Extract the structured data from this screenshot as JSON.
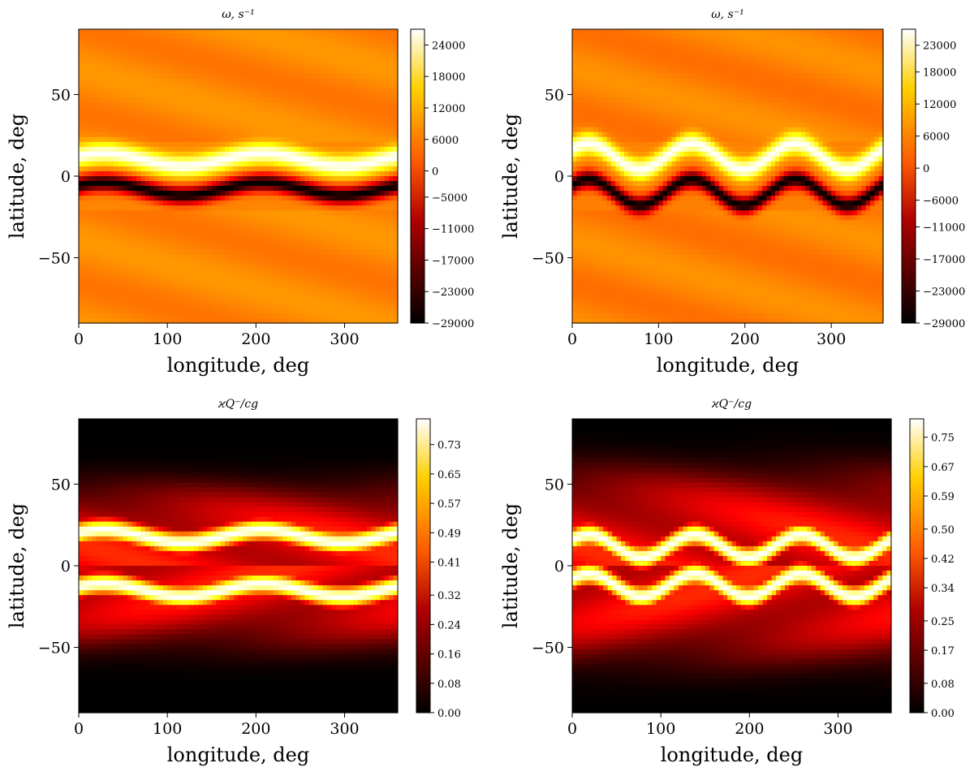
{
  "chart_data": [
    {
      "type": "heatmap",
      "title": "ω, s⁻¹",
      "xlabel": "longitude, deg",
      "ylabel": "latitude, deg",
      "xlim": [
        0,
        360
      ],
      "ylim": [
        -90,
        90
      ],
      "xticks": [
        "0",
        "100",
        "200",
        "300"
      ],
      "yticks": [
        "50",
        "0",
        "−50"
      ],
      "colormap": "hot",
      "field": "vorticity",
      "colorbar": {
        "min": -29000,
        "max": 27000,
        "ticks": [
          24000,
          18000,
          12000,
          6000,
          0,
          -5000,
          -11000,
          -17000,
          -23000,
          -29000
        ],
        "tick_labels": [
          "24000",
          "18000",
          "12000",
          "6000",
          "0",
          "−5000",
          "−11000",
          "−17000",
          "−23000",
          "−29000"
        ]
      },
      "bands": {
        "background_value": 3000,
        "positive_peak": {
          "value": 27000,
          "center_lat_deg": 10,
          "wave_amplitude_deg": 4,
          "wave_number": 2
        },
        "negative_trough": {
          "value": -29000,
          "center_lat_deg": -8,
          "wave_amplitude_deg": 4,
          "wave_number": 2
        }
      }
    },
    {
      "type": "heatmap",
      "title": "ω, s⁻¹",
      "xlabel": "longitude, deg",
      "ylabel": "latitude, deg",
      "xlim": [
        0,
        360
      ],
      "ylim": [
        -90,
        90
      ],
      "xticks": [
        "0",
        "100",
        "200",
        "300"
      ],
      "yticks": [
        "50",
        "0",
        "−50"
      ],
      "colormap": "hot",
      "field": "vorticity",
      "colorbar": {
        "min": -29000,
        "max": 26000,
        "ticks": [
          23000,
          18000,
          12000,
          6000,
          0,
          -6000,
          -11000,
          -17000,
          -23000,
          -29000
        ],
        "tick_labels": [
          "23000",
          "18000",
          "12000",
          "6000",
          "0",
          "−6000",
          "−11000",
          "−17000",
          "−23000",
          "−29000"
        ]
      },
      "bands": {
        "background_value": 2000,
        "positive_peak": {
          "value": 26000,
          "center_lat_deg": 12,
          "wave_amplitude_deg": 8,
          "wave_number": 3
        },
        "negative_trough": {
          "value": -29000,
          "center_lat_deg": -10,
          "wave_amplitude_deg": 8,
          "wave_number": 3
        }
      }
    },
    {
      "type": "heatmap",
      "title": "ϰQ⁻/cg",
      "xlabel": "longitude, deg",
      "ylabel": "latitude, deg",
      "xlim": [
        0,
        360
      ],
      "ylim": [
        -90,
        90
      ],
      "xticks": [
        "0",
        "100",
        "200",
        "300"
      ],
      "yticks": [
        "50",
        "0",
        "−50"
      ],
      "colormap": "hot",
      "field": "heating",
      "colorbar": {
        "min": 0,
        "max": 0.8,
        "ticks": [
          0.73,
          0.65,
          0.57,
          0.49,
          0.41,
          0.32,
          0.24,
          0.16,
          0.08,
          0.0
        ],
        "tick_labels": [
          "0.73",
          "0.65",
          "0.57",
          "0.49",
          "0.41",
          "0.32",
          "0.24",
          "0.16",
          "0.08",
          "0.00"
        ]
      },
      "bands": {
        "peaks": [
          {
            "center_lat_deg": 18,
            "value": 0.8,
            "wave_amplitude_deg": 4,
            "wave_number": 2
          },
          {
            "center_lat_deg": -15,
            "value": 0.8,
            "wave_amplitude_deg": 4,
            "wave_number": 2
          }
        ],
        "extent_lat_deg": [
          -55,
          50
        ]
      }
    },
    {
      "type": "heatmap",
      "title": "ϰQ⁻/cg",
      "xlabel": "longitude, deg",
      "ylabel": "latitude, deg",
      "xlim": [
        0,
        360
      ],
      "ylim": [
        -90,
        90
      ],
      "xticks": [
        "0",
        "100",
        "200",
        "300"
      ],
      "yticks": [
        "50",
        "0",
        "−50"
      ],
      "colormap": "hot",
      "field": "heating",
      "colorbar": {
        "min": 0,
        "max": 0.8,
        "ticks": [
          0.75,
          0.67,
          0.59,
          0.5,
          0.42,
          0.34,
          0.25,
          0.17,
          0.08,
          0.0
        ],
        "tick_labels": [
          "0.75",
          "0.67",
          "0.59",
          "0.50",
          "0.42",
          "0.34",
          "0.25",
          "0.17",
          "0.08",
          "0.00"
        ]
      },
      "bands": {
        "peaks": [
          {
            "center_lat_deg": 12,
            "value": 0.8,
            "wave_amplitude_deg": 7,
            "wave_number": 3
          },
          {
            "center_lat_deg": -12,
            "value": 0.8,
            "wave_amplitude_deg": 7,
            "wave_number": 3
          }
        ],
        "extent_lat_deg": [
          -65,
          60
        ]
      }
    }
  ]
}
